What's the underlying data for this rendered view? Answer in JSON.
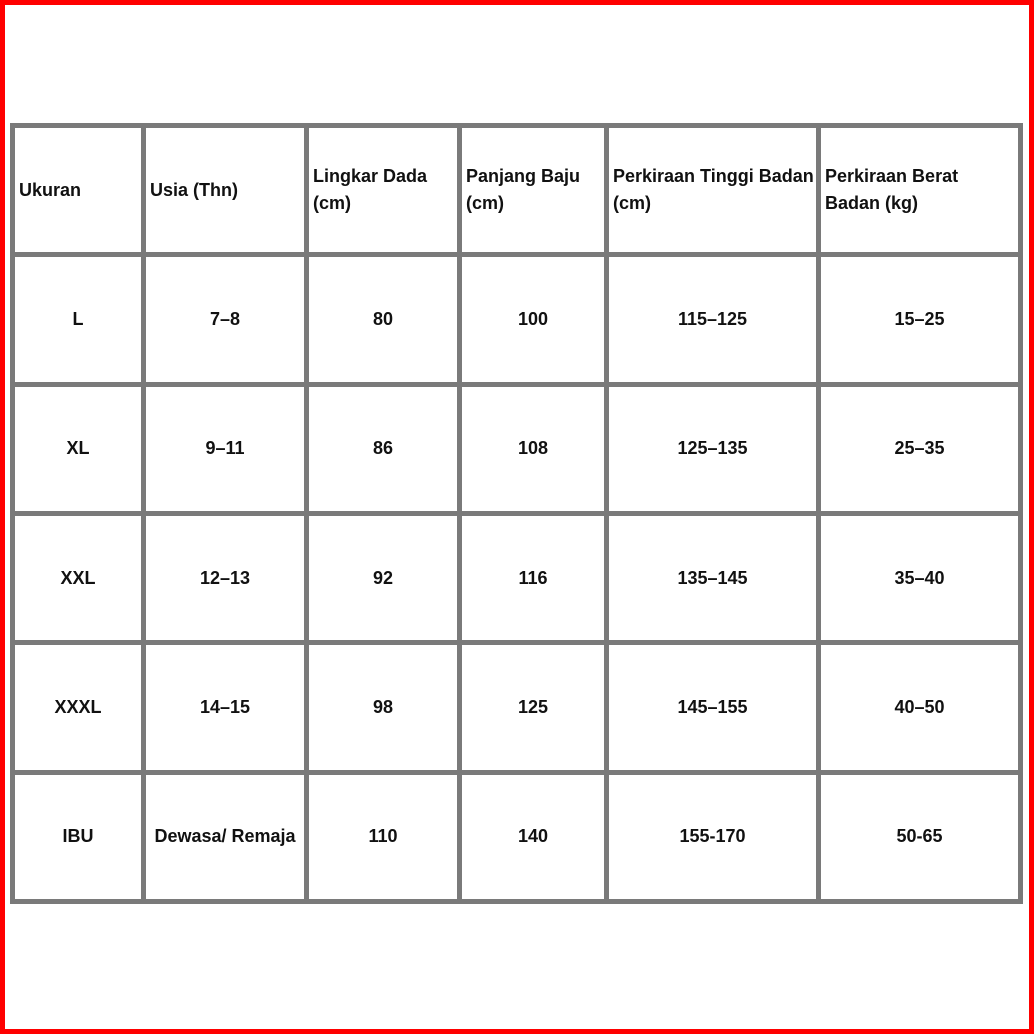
{
  "colors": {
    "frame": "#ff0000",
    "grid": "#7a7a7a"
  },
  "table": {
    "headers": [
      "Ukuran",
      "Usia (Thn)",
      "Lingkar Dada (cm)",
      "Panjang Baju (cm)",
      "Perkiraan Tinggi Badan (cm)",
      "Perkiraan Berat Badan (kg)"
    ],
    "rows": [
      [
        "L",
        "7–8",
        "80",
        "100",
        "115–125",
        "15–25"
      ],
      [
        "XL",
        "9–11",
        "86",
        "108",
        "125–135",
        "25–35"
      ],
      [
        "XXL",
        "12–13",
        "92",
        "116",
        "135–145",
        "35–40"
      ],
      [
        "XXXL",
        "14–15",
        "98",
        "125",
        "145–155",
        "40–50"
      ],
      [
        "IBU",
        "Dewasa/ Remaja",
        "110",
        "140",
        "155-170",
        "50-65"
      ]
    ]
  }
}
